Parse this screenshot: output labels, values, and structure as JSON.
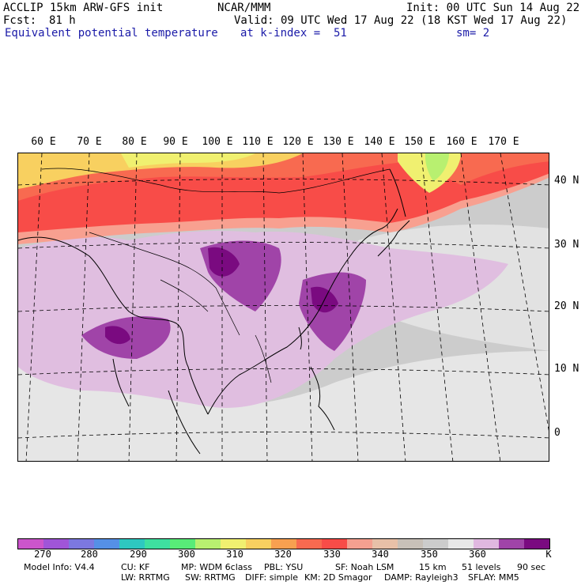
{
  "header": {
    "model": "ACCLIP 15km ARW-GFS init",
    "center": "NCAR/MMM",
    "init": "Init: 00 UTC Sun 14 Aug 22",
    "fcst_label": "Fcst:",
    "fcst_value": "81 h",
    "valid": "Valid: 09 UTC Wed 17 Aug 22 (18 KST Wed 17 Aug 22)",
    "field": "Equivalent potential temperature",
    "level": "at k-index =  51",
    "smoothing": "sm= 2"
  },
  "map": {
    "longitude_labels": [
      "60 E",
      "70 E",
      "80 E",
      "90 E",
      "100 E",
      "110 E",
      "120 E",
      "130 E",
      "140 E",
      "150 E",
      "160 E",
      "170 E"
    ],
    "latitude_labels": [
      "40 N",
      "30 N",
      "20 N",
      "10 N",
      "0"
    ],
    "region": "Asia"
  },
  "colorbar": {
    "unit": "K",
    "tick_labels": [
      "270",
      "280",
      "290",
      "300",
      "310",
      "320",
      "330",
      "340",
      "350",
      "360"
    ],
    "colors": [
      "#cc55cc",
      "#a055d8",
      "#7c78e0",
      "#5590e6",
      "#2ec8c0",
      "#3ee0a0",
      "#58ec78",
      "#b8f070",
      "#f0f070",
      "#f8d060",
      "#f8a050",
      "#f86a50",
      "#f84c48",
      "#f4a090",
      "#e8c0a8",
      "#c8c0b8",
      "#cccccc",
      "#e8e8e8",
      "#e0b8e0",
      "#a044a8",
      "#7a0a80"
    ]
  },
  "model_info": {
    "line1": [
      "Model Info: V4.4",
      "CU: KF",
      "MP: WDM 6class",
      "PBL: YSU",
      "SF: Noah LSM",
      "15 km",
      "51 levels",
      "90 sec"
    ],
    "line2": [
      "LW: RRTMG",
      "SW: RRTMG",
      "DIFF: simple",
      "KM: 2D Smagor",
      "DAMP: Rayleigh3",
      "SFLAY: MM5"
    ]
  }
}
